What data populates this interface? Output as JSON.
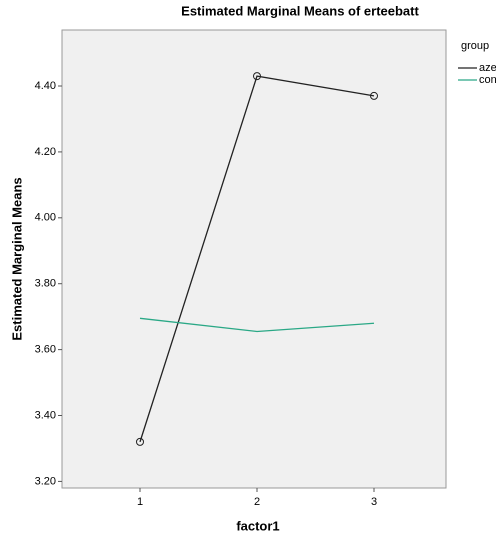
{
  "chart_data": {
    "type": "line",
    "title": "Estimated Marginal Means of erteebatt",
    "x_label": "factor1",
    "y_label": "Estimated Marginal Means",
    "legend_title": "group",
    "categories": [
      "1",
      "2",
      "3"
    ],
    "series": [
      {
        "name": "aze",
        "color": "#222222",
        "values": [
          3.32,
          4.43,
          4.37
        ],
        "markers": true
      },
      {
        "name": "con",
        "color": "#2aa886",
        "values": [
          3.695,
          3.655,
          3.68
        ],
        "markers": false
      }
    ],
    "ylim": [
      3.18,
      4.57
    ],
    "yticks": [
      {
        "value": 3.2,
        "label": "3.20"
      },
      {
        "value": 3.4,
        "label": "3.40"
      },
      {
        "value": 3.6,
        "label": "3.60"
      },
      {
        "value": 3.8,
        "label": "3.80"
      },
      {
        "value": 4.0,
        "label": "4.00"
      },
      {
        "value": 4.2,
        "label": "4.20"
      },
      {
        "value": 4.4,
        "label": "4.40"
      }
    ],
    "legend": "right"
  }
}
